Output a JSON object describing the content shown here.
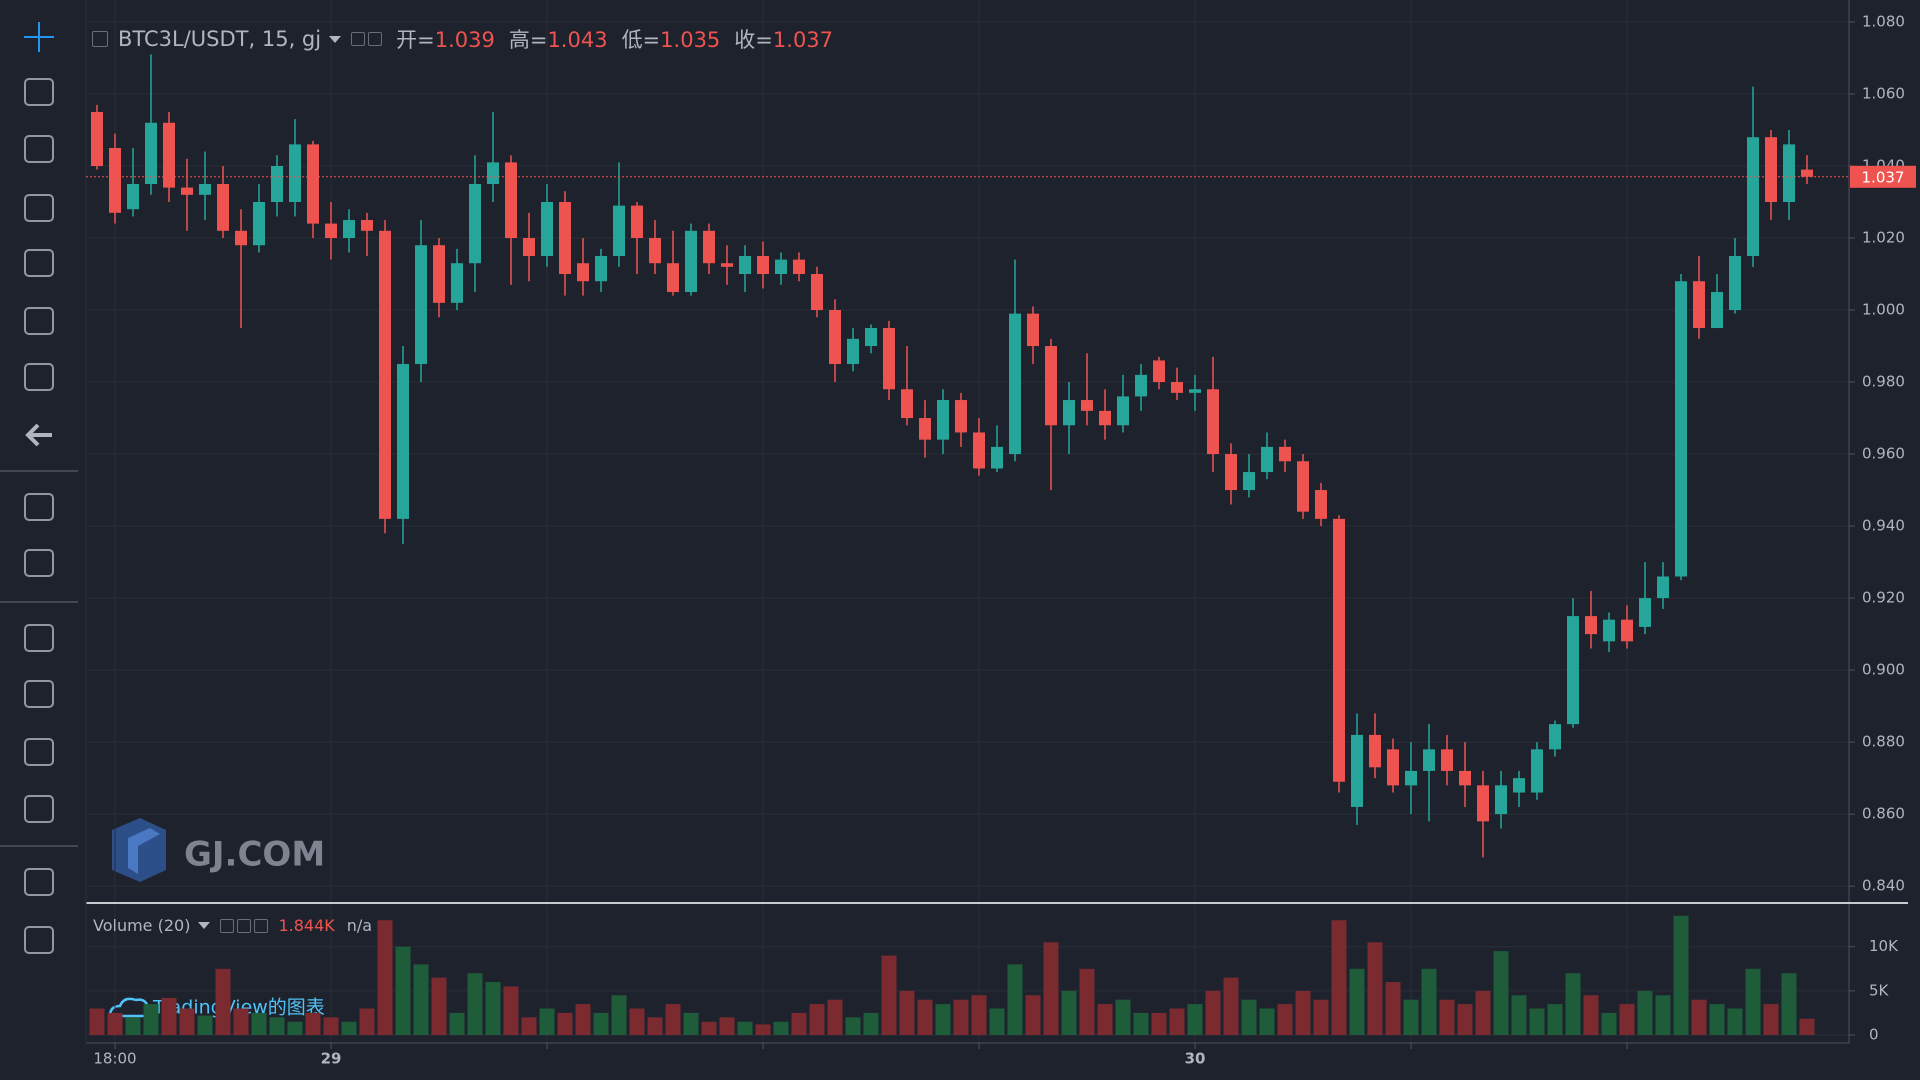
{
  "chart_data": {
    "type": "candlestick",
    "title": "BTC3L/USDT, 15, gj",
    "ohlc_legend": [
      {
        "label": "开=",
        "value": 1.039
      },
      {
        "label": "高=",
        "value": 1.043
      },
      {
        "label": "低=",
        "value": 1.035
      },
      {
        "label": "收=",
        "value": 1.037
      }
    ],
    "x": [
      null,
      "18:00",
      null,
      null,
      null,
      null,
      null,
      null,
      null,
      null,
      null,
      null,
      null,
      "29",
      null,
      null,
      null,
      null,
      null,
      null,
      null,
      null,
      null,
      null,
      null,
      null,
      null,
      null,
      null,
      null,
      null,
      null,
      null,
      null,
      null,
      null,
      null,
      null,
      null,
      null,
      null,
      null,
      null,
      null,
      null,
      null,
      null,
      null,
      null,
      null,
      null,
      null,
      null,
      null,
      null,
      null,
      null,
      null,
      null,
      null,
      null,
      "30",
      null,
      null,
      null,
      null,
      null,
      null,
      null,
      null,
      null,
      null,
      null,
      null,
      null,
      null,
      null,
      null,
      null,
      null,
      null,
      null,
      null,
      null,
      null,
      null,
      null,
      null,
      null,
      null,
      null,
      null,
      null,
      null,
      null,
      null
    ],
    "open": [
      1.055,
      1.045,
      1.028,
      1.035,
      1.052,
      1.034,
      1.032,
      1.035,
      1.022,
      1.018,
      1.03,
      1.03,
      1.046,
      1.024,
      1.02,
      1.025,
      1.022,
      0.942,
      0.985,
      1.018,
      1.002,
      1.013,
      1.035,
      1.041,
      1.02,
      1.015,
      1.03,
      1.013,
      1.008,
      1.015,
      1.029,
      1.02,
      1.013,
      1.005,
      1.022,
      1.013,
      1.01,
      1.015,
      1.01,
      1.014,
      1.01,
      1.0,
      0.985,
      0.99,
      0.995,
      0.978,
      0.97,
      0.964,
      0.975,
      0.966,
      0.956,
      0.96,
      0.999,
      0.99,
      0.968,
      0.975,
      0.972,
      0.968,
      0.976,
      0.986,
      0.98,
      0.977,
      0.978,
      0.96,
      0.95,
      0.955,
      0.962,
      0.958,
      0.95,
      0.942,
      0.862,
      0.882,
      0.878,
      0.868,
      0.872,
      0.878,
      0.872,
      0.868,
      0.86,
      0.866,
      0.866,
      0.878,
      0.885,
      0.915,
      0.908,
      0.914,
      0.912,
      0.92,
      0.926,
      1.008,
      0.995,
      1.0,
      1.015,
      1.048,
      1.03,
      1.039
    ],
    "high": [
      1.057,
      1.049,
      1.045,
      1.071,
      1.055,
      1.042,
      1.044,
      1.04,
      1.028,
      1.035,
      1.043,
      1.053,
      1.047,
      1.03,
      1.028,
      1.027,
      1.025,
      0.99,
      1.025,
      1.02,
      1.017,
      1.043,
      1.055,
      1.043,
      1.027,
      1.035,
      1.033,
      1.02,
      1.017,
      1.041,
      1.03,
      1.025,
      1.022,
      1.024,
      1.024,
      1.018,
      1.018,
      1.019,
      1.016,
      1.016,
      1.012,
      1.003,
      0.995,
      0.996,
      0.997,
      0.99,
      0.975,
      0.978,
      0.977,
      0.97,
      0.968,
      1.014,
      1.001,
      0.992,
      0.98,
      0.988,
      0.978,
      0.982,
      0.985,
      0.987,
      0.984,
      0.982,
      0.987,
      0.963,
      0.96,
      0.966,
      0.964,
      0.96,
      0.952,
      0.943,
      0.888,
      0.888,
      0.881,
      0.88,
      0.885,
      0.882,
      0.88,
      0.872,
      0.872,
      0.872,
      0.88,
      0.886,
      0.92,
      0.922,
      0.916,
      0.918,
      0.93,
      0.93,
      1.01,
      1.015,
      1.01,
      1.02,
      1.062,
      1.05,
      1.05,
      1.043
    ],
    "low": [
      1.039,
      1.024,
      1.026,
      1.032,
      1.03,
      1.022,
      1.025,
      1.02,
      0.995,
      1.016,
      1.026,
      1.026,
      1.02,
      1.014,
      1.016,
      1.015,
      0.938,
      0.935,
      0.98,
      0.998,
      1.0,
      1.005,
      1.03,
      1.007,
      1.008,
      1.012,
      1.004,
      1.004,
      1.005,
      1.012,
      1.01,
      1.01,
      1.004,
      1.004,
      1.01,
      1.007,
      1.005,
      1.006,
      1.007,
      1.008,
      0.998,
      0.98,
      0.983,
      0.988,
      0.975,
      0.968,
      0.959,
      0.96,
      0.962,
      0.954,
      0.955,
      0.958,
      0.985,
      0.95,
      0.96,
      0.968,
      0.964,
      0.966,
      0.972,
      0.978,
      0.975,
      0.972,
      0.955,
      0.946,
      0.948,
      0.953,
      0.955,
      0.942,
      0.94,
      0.866,
      0.857,
      0.87,
      0.866,
      0.86,
      0.858,
      0.868,
      0.862,
      0.848,
      0.856,
      0.862,
      0.864,
      0.876,
      0.884,
      0.906,
      0.905,
      0.906,
      0.91,
      0.917,
      0.925,
      0.992,
      0.995,
      0.999,
      1.012,
      1.025,
      1.025,
      1.035
    ],
    "close": [
      1.04,
      1.027,
      1.035,
      1.052,
      1.034,
      1.032,
      1.035,
      1.022,
      1.018,
      1.03,
      1.04,
      1.046,
      1.024,
      1.02,
      1.025,
      1.022,
      0.942,
      0.985,
      1.018,
      1.002,
      1.013,
      1.035,
      1.041,
      1.02,
      1.015,
      1.03,
      1.01,
      1.008,
      1.015,
      1.029,
      1.02,
      1.013,
      1.005,
      1.022,
      1.013,
      1.012,
      1.015,
      1.01,
      1.014,
      1.01,
      1.0,
      0.985,
      0.992,
      0.995,
      0.978,
      0.97,
      0.964,
      0.975,
      0.966,
      0.956,
      0.962,
      0.999,
      0.99,
      0.968,
      0.975,
      0.972,
      0.968,
      0.976,
      0.982,
      0.98,
      0.977,
      0.978,
      0.96,
      0.95,
      0.955,
      0.962,
      0.958,
      0.944,
      0.942,
      0.869,
      0.882,
      0.873,
      0.868,
      0.872,
      0.878,
      0.872,
      0.868,
      0.858,
      0.868,
      0.87,
      0.878,
      0.885,
      0.915,
      0.91,
      0.914,
      0.908,
      0.92,
      0.926,
      1.008,
      0.995,
      1.005,
      1.015,
      1.048,
      1.03,
      1.046,
      1.037
    ],
    "up_color": "#26a69a",
    "down_color": "#ef5350",
    "ylim": [
      0.8356,
      1.0861
    ],
    "yticks": [
      {
        "value": 0.84,
        "label": "0.840"
      },
      {
        "value": 0.86,
        "label": "0.860"
      },
      {
        "value": 0.88,
        "label": "0.880"
      },
      {
        "value": 0.9,
        "label": "0.900"
      },
      {
        "value": 0.92,
        "label": "0.920"
      },
      {
        "value": 0.94,
        "label": "0.940"
      },
      {
        "value": 0.96,
        "label": "0.960"
      },
      {
        "value": 0.98,
        "label": "0.980"
      },
      {
        "value": 1.0,
        "label": "1.000"
      },
      {
        "value": 1.02,
        "label": "1.020"
      },
      {
        "value": 1.04,
        "label": "1.040"
      },
      {
        "value": 1.06,
        "label": "1.060"
      },
      {
        "value": 1.08,
        "label": "1.080"
      }
    ],
    "grid": true,
    "last_price": 1.037,
    "volume": {
      "title": "Volume (20)",
      "values": [
        3000,
        2500,
        2000,
        3500,
        4200,
        3000,
        2200,
        7500,
        3000,
        2500,
        2000,
        1500,
        2500,
        2000,
        1500,
        3000,
        13000,
        10000,
        8000,
        6500,
        2500,
        7000,
        6000,
        5500,
        2000,
        3000,
        2500,
        3500,
        2500,
        4500,
        3000,
        2000,
        3500,
        2500,
        1500,
        2000,
        1500,
        1200,
        1500,
        2500,
        3500,
        4000,
        2000,
        2500,
        9000,
        5000,
        4000,
        3500,
        4000,
        4500,
        3000,
        8000,
        4500,
        10500,
        5000,
        7500,
        3500,
        4000,
        2500,
        2500,
        3000,
        3500,
        5000,
        6500,
        4000,
        3000,
        3500,
        5000,
        4000,
        13000,
        7500,
        10500,
        6000,
        4000,
        7500,
        4000,
        3500,
        5000,
        9500,
        4500,
        3000,
        3500,
        7000,
        4500,
        2500,
        3500,
        5000,
        4500,
        13500,
        4000,
        3500,
        3000,
        7500,
        3500,
        7000,
        1844
      ],
      "up_color": "#1e5c3a",
      "down_color": "#7b2a30",
      "ylim": [
        0,
        14500
      ],
      "yticks": [
        0,
        {
          "value": 5000,
          "label": "5K"
        },
        {
          "value": 10000,
          "label": "10K"
        }
      ],
      "last": {
        "value": 1844,
        "label": "1.844K"
      },
      "extra": "n/a"
    }
  },
  "watermark": {
    "logo": "GJ.COM",
    "credit": "TradingView的图表"
  }
}
